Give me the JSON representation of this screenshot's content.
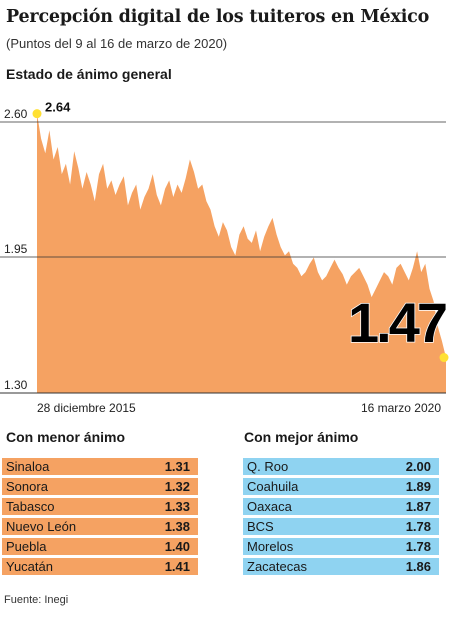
{
  "header": {
    "title": "Percepción digital de los tuiteros en México",
    "subtitle": "(Puntos del 9 al 16 de marzo de 2020)"
  },
  "colors": {
    "area": "#f5a262",
    "menor_row": "#f5a262",
    "mejor_row": "#8fd3f1",
    "marker": "#ffe033"
  },
  "chart_data": {
    "type": "area",
    "title": "Estado de ánimo general",
    "x_start": "28 diciembre 2015",
    "x_end": "16 marzo 2020",
    "y_ticks": [
      "2.60",
      "1.95",
      "1.30"
    ],
    "ylim": [
      1.3,
      2.7
    ],
    "max_label": "2.64",
    "last_label": "1.47",
    "max_value": 2.64,
    "last_value": 1.47,
    "grid": true,
    "values": [
      2.64,
      2.52,
      2.45,
      2.56,
      2.42,
      2.48,
      2.35,
      2.4,
      2.3,
      2.46,
      2.38,
      2.28,
      2.36,
      2.3,
      2.22,
      2.35,
      2.4,
      2.28,
      2.32,
      2.25,
      2.3,
      2.34,
      2.2,
      2.26,
      2.3,
      2.18,
      2.24,
      2.28,
      2.35,
      2.25,
      2.2,
      2.28,
      2.32,
      2.24,
      2.3,
      2.26,
      2.33,
      2.42,
      2.36,
      2.28,
      2.3,
      2.22,
      2.18,
      2.1,
      2.05,
      2.12,
      2.08,
      2.0,
      1.96,
      2.06,
      2.1,
      2.04,
      2.02,
      2.08,
      1.98,
      2.05,
      2.1,
      2.14,
      2.06,
      2.0,
      1.96,
      1.98,
      1.92,
      1.9,
      1.86,
      1.88,
      1.92,
      1.95,
      1.88,
      1.84,
      1.86,
      1.9,
      1.94,
      1.9,
      1.87,
      1.82,
      1.86,
      1.88,
      1.9,
      1.86,
      1.82,
      1.76,
      1.8,
      1.84,
      1.88,
      1.86,
      1.82,
      1.9,
      1.92,
      1.88,
      1.84,
      1.9,
      1.98,
      1.88,
      1.92,
      1.8,
      1.74,
      1.62,
      1.55,
      1.47
    ]
  },
  "menor": {
    "title": "Con menor ánimo",
    "rows": [
      {
        "name": "Sinaloa",
        "value": "1.31"
      },
      {
        "name": "Sonora",
        "value": "1.32"
      },
      {
        "name": "Tabasco",
        "value": "1.33"
      },
      {
        "name": "Nuevo León",
        "value": "1.38"
      },
      {
        "name": "Puebla",
        "value": "1.40"
      },
      {
        "name": "Yucatán",
        "value": "1.41"
      }
    ]
  },
  "mejor": {
    "title": "Con mejor ánimo",
    "rows": [
      {
        "name": "Q. Roo",
        "value": "2.00"
      },
      {
        "name": "Coahuila",
        "value": "1.89"
      },
      {
        "name": "Oaxaca",
        "value": "1.87"
      },
      {
        "name": "BCS",
        "value": "1.78"
      },
      {
        "name": "Morelos",
        "value": "1.78"
      },
      {
        "name": "Zacatecas",
        "value": "1.86"
      }
    ]
  },
  "source": "Fuente: Inegi"
}
